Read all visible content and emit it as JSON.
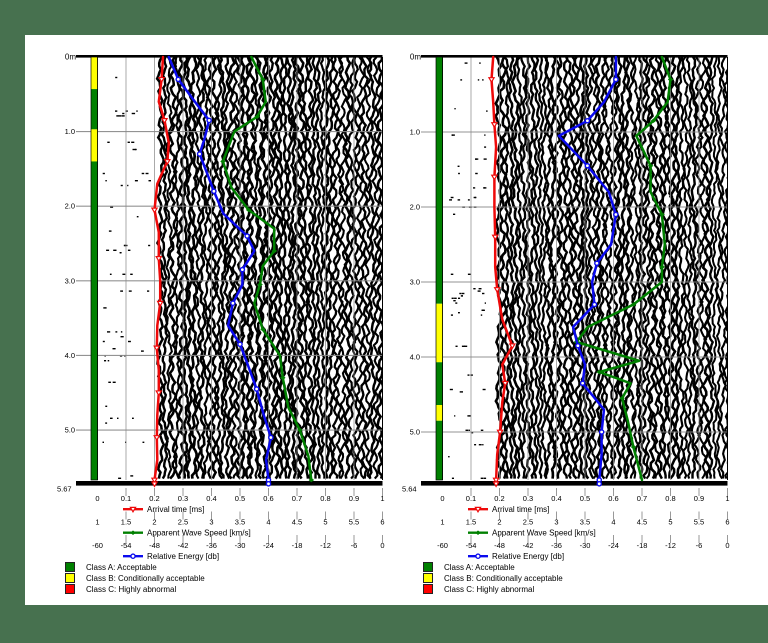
{
  "colors": {
    "background": "#47714f",
    "page": "#ffffff",
    "grid": "#8f8f8f",
    "class_a": "#008000",
    "class_b": "#ffff00",
    "class_c": "#ff0000",
    "arrival": "#ee0a0a",
    "speed": "#008000",
    "energy": "#0b0bee"
  },
  "legend": {
    "items": [
      {
        "label": "Class A: Acceptable",
        "color": "#008000"
      },
      {
        "label": "Class B: Conditionally acceptable",
        "color": "#ffff00"
      },
      {
        "label": "Class C: Highly abnormal",
        "color": "#ff0000"
      }
    ]
  },
  "chart_data": {
    "type": "line",
    "depth_axis": {
      "unit": "m",
      "top_label": "0m",
      "tick_labels": [
        "1.0",
        "2.0",
        "3.0",
        "4.0",
        "5.0"
      ]
    },
    "axes": {
      "arrival": {
        "label": "Arrival time [ms]",
        "min": 0,
        "max": 1,
        "ticks": [
          "0",
          "0.1",
          "0.2",
          "0.3",
          "0.4",
          "0.5",
          "0.6",
          "0.7",
          "0.8",
          "0.9",
          "1"
        ],
        "color": "#ee0a0a"
      },
      "speed": {
        "label": "Apparent Wave Speed [km/s]",
        "min": 1,
        "max": 6,
        "ticks": [
          "1",
          "1.5",
          "2",
          "2.5",
          "3",
          "3.5",
          "4",
          "4.5",
          "5",
          "5.5",
          "6"
        ],
        "color": "#008000"
      },
      "energy": {
        "label": "Relative Energy [db]",
        "min": -60,
        "max": 0,
        "ticks": [
          "-60",
          "-54",
          "-48",
          "-42",
          "-36",
          "-30",
          "-24",
          "-18",
          "-12",
          "-6",
          "0"
        ],
        "color": "#0b0bee"
      }
    },
    "panels": [
      {
        "id": "left",
        "max_depth": 5.67,
        "bottom_depth_label": "5.67",
        "class_bar": [
          {
            "class": "B",
            "from": 0.0,
            "to": 0.43
          },
          {
            "class": "A",
            "from": 0.43,
            "to": 0.97
          },
          {
            "class": "B",
            "from": 0.97,
            "to": 1.4
          },
          {
            "class": "A",
            "from": 1.4,
            "to": 5.67
          }
        ],
        "series": {
          "arrival_time_ms": [
            [
              0,
              0.23
            ],
            [
              0.3,
              0.225
            ],
            [
              0.6,
              0.215
            ],
            [
              0.85,
              0.235
            ],
            [
              1.15,
              0.25
            ],
            [
              1.4,
              0.245
            ],
            [
              1.7,
              0.21
            ],
            [
              2.05,
              0.2
            ],
            [
              2.35,
              0.215
            ],
            [
              2.7,
              0.215
            ],
            [
              3.0,
              0.22
            ],
            [
              3.3,
              0.22
            ],
            [
              3.6,
              0.21
            ],
            [
              3.9,
              0.208
            ],
            [
              4.2,
              0.215
            ],
            [
              4.5,
              0.215
            ],
            [
              4.8,
              0.21
            ],
            [
              5.1,
              0.208
            ],
            [
              5.4,
              0.21
            ],
            [
              5.67,
              0.2
            ]
          ],
          "wave_speed_kms": [
            [
              0,
              3.7
            ],
            [
              0.3,
              3.9
            ],
            [
              0.6,
              3.95
            ],
            [
              0.8,
              3.8
            ],
            [
              1.0,
              3.4
            ],
            [
              1.4,
              3.2
            ],
            [
              1.75,
              3.35
            ],
            [
              2.05,
              3.65
            ],
            [
              2.3,
              4.1
            ],
            [
              2.6,
              4.1
            ],
            [
              2.8,
              3.9
            ],
            [
              3.05,
              3.85
            ],
            [
              3.3,
              3.75
            ],
            [
              3.65,
              3.9
            ],
            [
              4.0,
              4.2
            ],
            [
              4.3,
              4.25
            ],
            [
              4.7,
              4.35
            ],
            [
              5.0,
              4.55
            ],
            [
              5.35,
              4.7
            ],
            [
              5.67,
              4.75
            ]
          ],
          "relative_energy_db": [
            [
              0,
              -45
            ],
            [
              0.3,
              -43
            ],
            [
              0.6,
              -39.5
            ],
            [
              0.85,
              -36.5
            ],
            [
              1.1,
              -37.5
            ],
            [
              1.3,
              -38.5
            ],
            [
              1.55,
              -37
            ],
            [
              1.8,
              -35.5
            ],
            [
              2.1,
              -33.5
            ],
            [
              2.4,
              -28.5
            ],
            [
              2.6,
              -27
            ],
            [
              2.85,
              -29.5
            ],
            [
              3.05,
              -29.5
            ],
            [
              3.3,
              -31.5
            ],
            [
              3.6,
              -32.5
            ],
            [
              3.85,
              -30
            ],
            [
              4.1,
              -28.5
            ],
            [
              4.45,
              -26.5
            ],
            [
              4.8,
              -25
            ],
            [
              5.1,
              -23.5
            ],
            [
              5.4,
              -24.5
            ],
            [
              5.67,
              -24
            ]
          ]
        }
      },
      {
        "id": "right",
        "max_depth": 5.64,
        "bottom_depth_label": "5.64",
        "class_bar": [
          {
            "class": "A",
            "from": 0.0,
            "to": 3.29
          },
          {
            "class": "B",
            "from": 3.29,
            "to": 4.07
          },
          {
            "class": "A",
            "from": 4.07,
            "to": 4.64
          },
          {
            "class": "B",
            "from": 4.64,
            "to": 4.85
          },
          {
            "class": "A",
            "from": 4.85,
            "to": 5.64
          }
        ],
        "series": {
          "arrival_time_ms": [
            [
              0,
              0.178
            ],
            [
              0.3,
              0.172
            ],
            [
              0.6,
              0.178
            ],
            [
              0.9,
              0.182
            ],
            [
              1.2,
              0.188
            ],
            [
              1.6,
              0.182
            ],
            [
              2.0,
              0.182
            ],
            [
              2.4,
              0.185
            ],
            [
              2.8,
              0.185
            ],
            [
              3.1,
              0.192
            ],
            [
              3.5,
              0.21
            ],
            [
              3.85,
              0.245
            ],
            [
              4.1,
              0.21
            ],
            [
              4.35,
              0.22
            ],
            [
              4.6,
              0.21
            ],
            [
              5.0,
              0.202
            ],
            [
              5.3,
              0.192
            ],
            [
              5.64,
              0.188
            ]
          ],
          "wave_speed_kms": [
            [
              0,
              4.85
            ],
            [
              0.3,
              5.0
            ],
            [
              0.6,
              4.95
            ],
            [
              0.85,
              4.7
            ],
            [
              1.05,
              4.4
            ],
            [
              1.45,
              4.65
            ],
            [
              1.8,
              4.65
            ],
            [
              2.1,
              4.85
            ],
            [
              2.5,
              4.9
            ],
            [
              2.8,
              4.85
            ],
            [
              3.0,
              4.85
            ],
            [
              3.3,
              4.35
            ],
            [
              3.6,
              3.55
            ],
            [
              3.8,
              3.35
            ],
            [
              4.05,
              4.45
            ],
            [
              4.2,
              3.75
            ],
            [
              4.35,
              4.3
            ],
            [
              4.55,
              4.15
            ],
            [
              4.85,
              4.25
            ],
            [
              5.2,
              4.35
            ],
            [
              5.64,
              4.5
            ]
          ],
          "relative_energy_db": [
            [
              0,
              -23.5
            ],
            [
              0.3,
              -23.5
            ],
            [
              0.6,
              -26
            ],
            [
              0.85,
              -29.5
            ],
            [
              1.05,
              -35.5
            ],
            [
              1.45,
              -29.5
            ],
            [
              1.8,
              -25
            ],
            [
              2.1,
              -23.5
            ],
            [
              2.5,
              -24.5
            ],
            [
              2.75,
              -27.5
            ],
            [
              3.0,
              -28.5
            ],
            [
              3.3,
              -28
            ],
            [
              3.6,
              -32.5
            ],
            [
              3.85,
              -31.5
            ],
            [
              4.1,
              -30
            ],
            [
              4.35,
              -30.5
            ],
            [
              4.7,
              -26
            ],
            [
              5.0,
              -26.5
            ],
            [
              5.3,
              -26.5
            ],
            [
              5.64,
              -27
            ]
          ]
        }
      }
    ]
  }
}
